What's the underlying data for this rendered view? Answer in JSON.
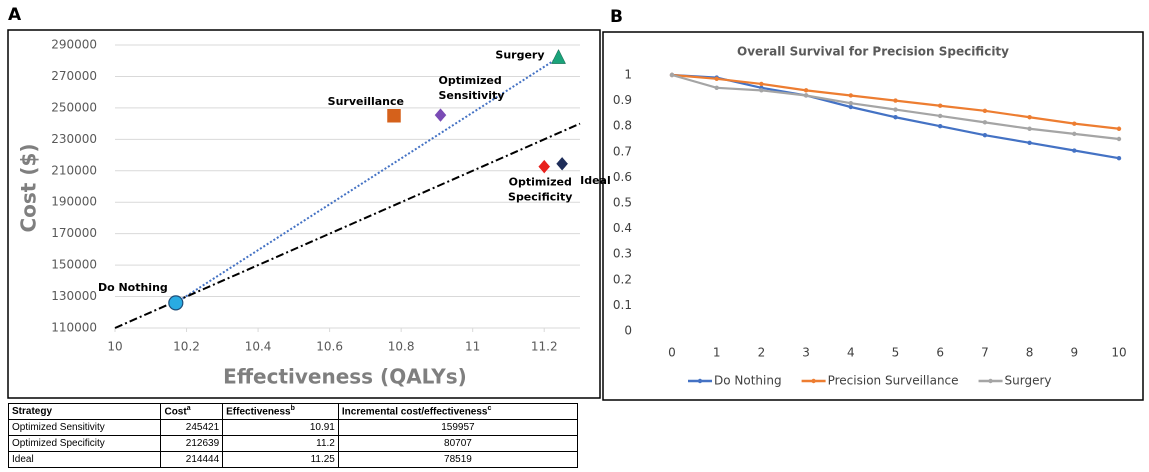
{
  "panels": [
    "A",
    "B"
  ],
  "chart_data": [
    {
      "type": "scatter",
      "xlabel": "Effectiveness (QALYs)",
      "ylabel": "Cost ($)",
      "xlim": [
        10,
        11.3
      ],
      "ylim": [
        110000,
        290000
      ],
      "xticks": [
        10,
        10.2,
        10.4,
        10.6,
        10.8,
        11,
        11.2
      ],
      "yticks": [
        110000,
        130000,
        150000,
        170000,
        190000,
        210000,
        230000,
        250000,
        270000,
        290000
      ],
      "points": [
        {
          "name": "Do Nothing",
          "x": 10.17,
          "y": 126000,
          "color": "#29abe2",
          "marker": "circle"
        },
        {
          "name": "Surveillance",
          "x": 10.78,
          "y": 245000,
          "color": "#d5611b",
          "marker": "square"
        },
        {
          "name": "Optimized Sensitivity",
          "x": 10.91,
          "y": 245421,
          "color": "#7a4bb5",
          "marker": "diamond"
        },
        {
          "name": "Surgery",
          "x": 11.24,
          "y": 282000,
          "color": "#1aa37a",
          "marker": "triangle"
        },
        {
          "name": "Optimized Specificity",
          "x": 11.2,
          "y": 212639,
          "color": "#e8201c",
          "marker": "diamond"
        },
        {
          "name": "Ideal",
          "x": 11.25,
          "y": 214444,
          "color": "#1f2e5a",
          "marker": "diamond"
        }
      ],
      "lines": [
        {
          "color": "#4472c4",
          "dash": "dotted",
          "x": [
            10.17,
            11.24
          ],
          "y": [
            126000,
            282000
          ]
        },
        {
          "color": "#000000",
          "dash": "dashdot",
          "x": [
            10,
            11.3
          ],
          "y": [
            110000,
            240000
          ]
        }
      ]
    },
    {
      "type": "line",
      "title": "Overall Survival for Precision Specificity",
      "categories": [
        "0",
        "1",
        "2",
        "3",
        "4",
        "5",
        "6",
        "7",
        "8",
        "9",
        "10"
      ],
      "ylim": [
        0,
        1.05
      ],
      "yticks": [
        0,
        0.1,
        0.2,
        0.3,
        0.4,
        0.5,
        0.6,
        0.7,
        0.8,
        0.9,
        1
      ],
      "legend": "bottom",
      "series": [
        {
          "name": "Do Nothing",
          "color": "#4472c4",
          "values": [
            1,
            0.99,
            0.95,
            0.92,
            0.875,
            0.835,
            0.8,
            0.765,
            0.735,
            0.705,
            0.675
          ]
        },
        {
          "name": "Precision Surveillance",
          "color": "#ed7d31",
          "values": [
            1,
            0.985,
            0.965,
            0.94,
            0.92,
            0.9,
            0.88,
            0.86,
            0.835,
            0.81,
            0.79
          ]
        },
        {
          "name": "Surgery",
          "color": "#a5a5a5",
          "values": [
            1,
            0.95,
            0.94,
            0.92,
            0.89,
            0.865,
            0.84,
            0.815,
            0.79,
            0.77,
            0.75
          ]
        }
      ]
    }
  ],
  "table": {
    "header": [
      {
        "text": "Strategy"
      },
      {
        "text": "Cost",
        "sup": "a"
      },
      {
        "text": "Effectiveness",
        "sup": "b"
      },
      {
        "text": "Incremental cost/effectiveness",
        "sup": "c"
      }
    ],
    "rows": [
      [
        "Optimized Sensitivity",
        245421,
        10.91,
        159957
      ],
      [
        "Optimized Specificity",
        212639,
        11.2,
        80707
      ],
      [
        "Ideal",
        214444,
        11.25,
        78519
      ]
    ]
  }
}
